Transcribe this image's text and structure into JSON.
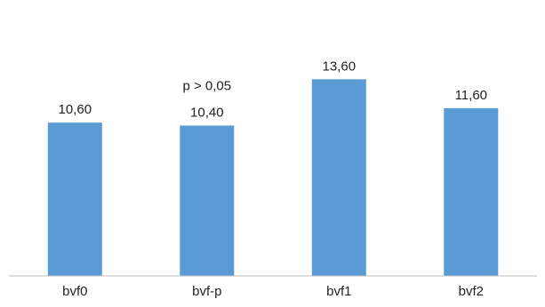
{
  "chart_data": {
    "type": "bar",
    "categories": [
      "bvf0",
      "bvf-p",
      "bvf1",
      "bvf2"
    ],
    "values": [
      10.6,
      10.4,
      13.6,
      11.6
    ],
    "value_labels": [
      "10,60",
      "10,40",
      "13,60",
      "11,60"
    ],
    "annotations": [
      {
        "category": "bvf-p",
        "text": "p > 0,05"
      }
    ],
    "title": "",
    "xlabel": "",
    "ylabel": "",
    "ylim": [
      0,
      15
    ],
    "grid": false,
    "legend": "none",
    "bar_color": "#5b9bd5",
    "axis_color": "#bfbfbf"
  }
}
